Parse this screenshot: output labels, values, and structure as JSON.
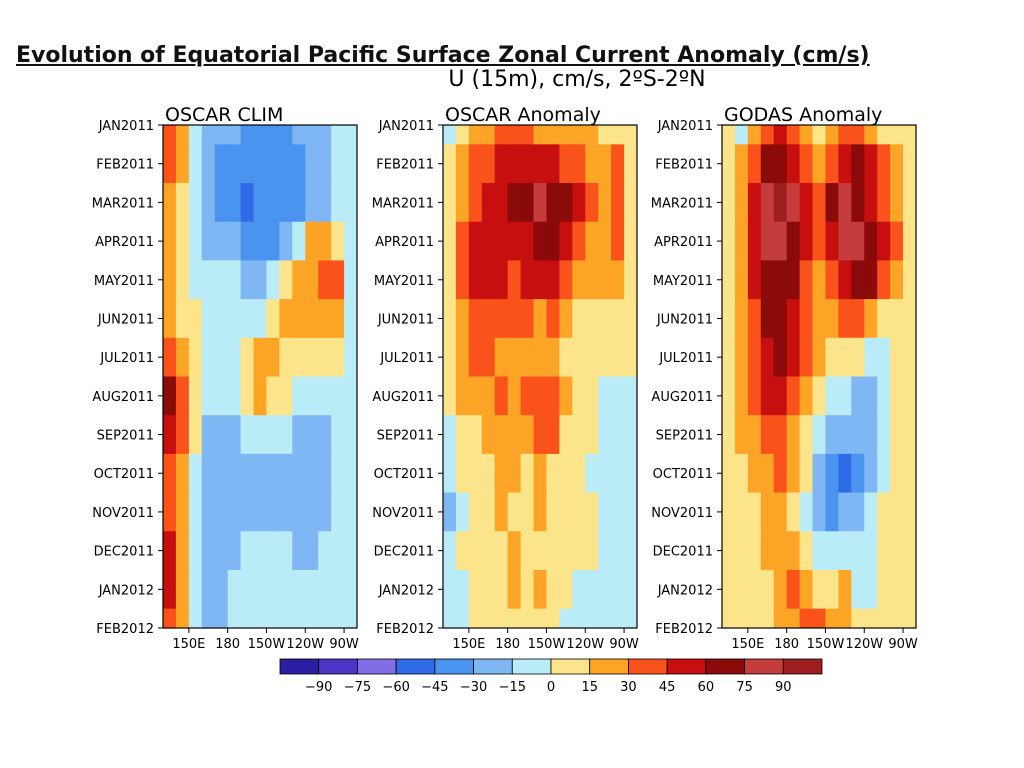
{
  "page": {
    "title": "Evolution of Equatorial Pacific Surface Zonal Current Anomaly (cm/s)"
  },
  "chart_data": {
    "type": "heatmap",
    "title": "U (15m), cm/s, 2ºS-2ºN",
    "y_ticks": [
      "JAN2011",
      "FEB2011",
      "MAR2011",
      "APR2011",
      "MAY2011",
      "JUN2011",
      "JUL2011",
      "AUG2011",
      "SEP2011",
      "OCT2011",
      "NOV2011",
      "DEC2011",
      "JAN2012",
      "FEB2012"
    ],
    "x_ticks": [
      "150E",
      "180",
      "150W",
      "120W",
      "90W"
    ],
    "x_tick_lon": [
      150,
      180,
      210,
      240,
      270
    ],
    "lon_range": [
      130,
      280
    ],
    "colorbar": {
      "levels": [
        -90,
        -75,
        -60,
        -45,
        -30,
        -15,
        0,
        15,
        30,
        45,
        60,
        75,
        90
      ],
      "colors": [
        "#2b1fa1",
        "#4a35c6",
        "#7f6ee6",
        "#2f6be6",
        "#4a93ef",
        "#7fb7f5",
        "#b9ecf7",
        "#fce48a",
        "#fca426",
        "#f9521a",
        "#c80f0f",
        "#8b0a0a",
        "#c43c3c",
        "#9e1f1f"
      ]
    },
    "panels": [
      {
        "title": "OSCAR CLIM",
        "row_labels": [
          "Jan",
          "Feb",
          "Mar",
          "Apr",
          "May",
          "Jun",
          "Jul",
          "Aug",
          "Sep",
          "Oct",
          "Nov",
          "Dec",
          "Jan",
          "Feb"
        ],
        "col_lon": [
          140,
          150,
          160,
          170,
          180,
          190,
          200,
          210,
          220,
          230,
          240,
          250,
          260,
          270,
          280
        ],
        "values": [
          [
            30,
            15,
            -15,
            -30,
            -30,
            -30,
            -45,
            -45,
            -45,
            -45,
            -30,
            -30,
            -30,
            -15,
            -15
          ],
          [
            30,
            15,
            -15,
            -30,
            -45,
            -45,
            -45,
            -45,
            -45,
            -45,
            -45,
            -30,
            -30,
            -15,
            -15
          ],
          [
            15,
            0,
            -15,
            -30,
            -45,
            -45,
            -60,
            -45,
            -45,
            -45,
            -45,
            -30,
            -30,
            -15,
            -15
          ],
          [
            15,
            0,
            -15,
            -30,
            -30,
            -30,
            -45,
            -45,
            -45,
            -30,
            -15,
            15,
            15,
            0,
            -15
          ],
          [
            15,
            0,
            -15,
            -15,
            -15,
            -15,
            -30,
            -30,
            -15,
            0,
            15,
            15,
            30,
            30,
            -15
          ],
          [
            15,
            0,
            0,
            -15,
            -15,
            -15,
            -15,
            -15,
            0,
            15,
            15,
            15,
            15,
            15,
            -15
          ],
          [
            30,
            15,
            0,
            -15,
            -15,
            -15,
            0,
            15,
            15,
            0,
            0,
            0,
            0,
            0,
            -15
          ],
          [
            60,
            30,
            0,
            -15,
            -15,
            -15,
            0,
            15,
            0,
            0,
            -15,
            -15,
            -15,
            -15,
            -15
          ],
          [
            45,
            30,
            0,
            -30,
            -30,
            -30,
            -15,
            -15,
            -15,
            -15,
            -30,
            -30,
            -30,
            -15,
            -15
          ],
          [
            30,
            15,
            -15,
            -30,
            -30,
            -30,
            -30,
            -30,
            -30,
            -30,
            -30,
            -30,
            -30,
            -15,
            -15
          ],
          [
            30,
            15,
            -15,
            -30,
            -30,
            -30,
            -30,
            -30,
            -30,
            -30,
            -30,
            -30,
            -30,
            -15,
            -15
          ],
          [
            45,
            15,
            -15,
            -30,
            -30,
            -30,
            -15,
            -15,
            -15,
            -15,
            -30,
            -30,
            -15,
            -15,
            -15
          ],
          [
            45,
            15,
            -15,
            -30,
            -30,
            -15,
            -15,
            -15,
            -15,
            -15,
            -15,
            -15,
            -15,
            -15,
            -15
          ],
          [
            30,
            15,
            -15,
            -30,
            -30,
            -15,
            -15,
            -15,
            -15,
            -15,
            -15,
            -15,
            -15,
            -15,
            -15
          ]
        ]
      },
      {
        "title": "OSCAR Anomaly",
        "row_labels": [
          "Jan",
          "Feb",
          "Mar",
          "Apr",
          "May",
          "Jun",
          "Jul",
          "Aug",
          "Sep",
          "Oct",
          "Nov",
          "Dec",
          "Jan",
          "Feb"
        ],
        "col_lon": [
          140,
          150,
          160,
          170,
          180,
          190,
          200,
          210,
          220,
          230,
          240,
          250,
          260,
          270,
          280
        ],
        "values": [
          [
            -15,
            0,
            15,
            15,
            30,
            30,
            30,
            15,
            15,
            15,
            15,
            15,
            0,
            0,
            0
          ],
          [
            0,
            15,
            30,
            30,
            45,
            45,
            45,
            45,
            45,
            30,
            30,
            15,
            15,
            30,
            0
          ],
          [
            0,
            15,
            30,
            45,
            45,
            60,
            60,
            75,
            60,
            60,
            45,
            30,
            15,
            30,
            0
          ],
          [
            0,
            30,
            45,
            45,
            45,
            45,
            45,
            60,
            60,
            45,
            30,
            15,
            15,
            30,
            0
          ],
          [
            0,
            30,
            45,
            45,
            45,
            30,
            45,
            45,
            45,
            30,
            15,
            15,
            15,
            15,
            0
          ],
          [
            0,
            15,
            30,
            30,
            30,
            30,
            30,
            15,
            30,
            15,
            0,
            0,
            0,
            0,
            0
          ],
          [
            0,
            15,
            30,
            30,
            15,
            15,
            15,
            15,
            15,
            0,
            0,
            0,
            0,
            0,
            0
          ],
          [
            0,
            15,
            15,
            15,
            30,
            15,
            30,
            30,
            30,
            15,
            0,
            0,
            -15,
            -15,
            -15
          ],
          [
            -15,
            0,
            0,
            15,
            15,
            15,
            15,
            30,
            30,
            0,
            0,
            0,
            -15,
            -15,
            -15
          ],
          [
            -15,
            0,
            0,
            0,
            15,
            15,
            0,
            15,
            0,
            0,
            0,
            -15,
            -15,
            -15,
            -15
          ],
          [
            -30,
            -15,
            0,
            0,
            15,
            0,
            0,
            15,
            0,
            0,
            0,
            0,
            -15,
            -15,
            -15
          ],
          [
            -15,
            0,
            0,
            0,
            0,
            15,
            0,
            0,
            0,
            0,
            0,
            0,
            -15,
            -15,
            -15
          ],
          [
            -15,
            -15,
            0,
            0,
            0,
            15,
            0,
            15,
            0,
            0,
            -15,
            -15,
            -15,
            -15,
            -15
          ],
          [
            -15,
            -15,
            0,
            0,
            0,
            0,
            0,
            0,
            0,
            -15,
            -15,
            -15,
            -15,
            -15,
            -15
          ]
        ]
      },
      {
        "title": "GODAS Anomaly",
        "row_labels": [
          "Jan",
          "Feb",
          "Mar",
          "Apr",
          "May",
          "Jun",
          "Jul",
          "Aug",
          "Sep",
          "Oct",
          "Nov",
          "Dec",
          "Jan",
          "Feb"
        ],
        "col_lon": [
          140,
          150,
          160,
          170,
          180,
          190,
          200,
          210,
          220,
          230,
          240,
          250,
          260,
          270,
          280
        ],
        "values": [
          [
            0,
            -15,
            15,
            30,
            45,
            30,
            15,
            0,
            15,
            30,
            30,
            15,
            0,
            0,
            0
          ],
          [
            0,
            15,
            30,
            60,
            60,
            45,
            30,
            15,
            30,
            45,
            60,
            45,
            30,
            15,
            0
          ],
          [
            0,
            15,
            45,
            75,
            90,
            75,
            45,
            30,
            60,
            75,
            60,
            45,
            30,
            15,
            0
          ],
          [
            0,
            15,
            45,
            75,
            75,
            60,
            45,
            30,
            45,
            75,
            75,
            60,
            45,
            30,
            0
          ],
          [
            0,
            15,
            45,
            60,
            60,
            60,
            30,
            15,
            30,
            45,
            60,
            60,
            30,
            15,
            0
          ],
          [
            0,
            15,
            30,
            60,
            60,
            45,
            30,
            15,
            15,
            30,
            30,
            15,
            0,
            0,
            0
          ],
          [
            0,
            15,
            30,
            45,
            60,
            45,
            30,
            15,
            0,
            0,
            0,
            -15,
            -15,
            0,
            0
          ],
          [
            0,
            15,
            30,
            45,
            45,
            30,
            15,
            0,
            -15,
            -15,
            -30,
            -30,
            -15,
            0,
            0
          ],
          [
            0,
            15,
            15,
            30,
            30,
            15,
            0,
            -15,
            -30,
            -30,
            -30,
            -30,
            -15,
            0,
            0
          ],
          [
            0,
            0,
            15,
            15,
            30,
            15,
            0,
            -30,
            -45,
            -60,
            -45,
            -30,
            -15,
            0,
            0
          ],
          [
            0,
            0,
            0,
            15,
            15,
            0,
            -15,
            -30,
            -45,
            -30,
            -30,
            -15,
            0,
            0,
            0
          ],
          [
            0,
            0,
            0,
            15,
            15,
            15,
            0,
            -15,
            -15,
            -15,
            -15,
            -15,
            0,
            0,
            0
          ],
          [
            0,
            0,
            0,
            0,
            15,
            30,
            15,
            0,
            0,
            15,
            -15,
            -15,
            0,
            0,
            0
          ],
          [
            0,
            0,
            0,
            0,
            15,
            15,
            30,
            30,
            15,
            15,
            0,
            0,
            0,
            0,
            0
          ]
        ]
      }
    ]
  }
}
